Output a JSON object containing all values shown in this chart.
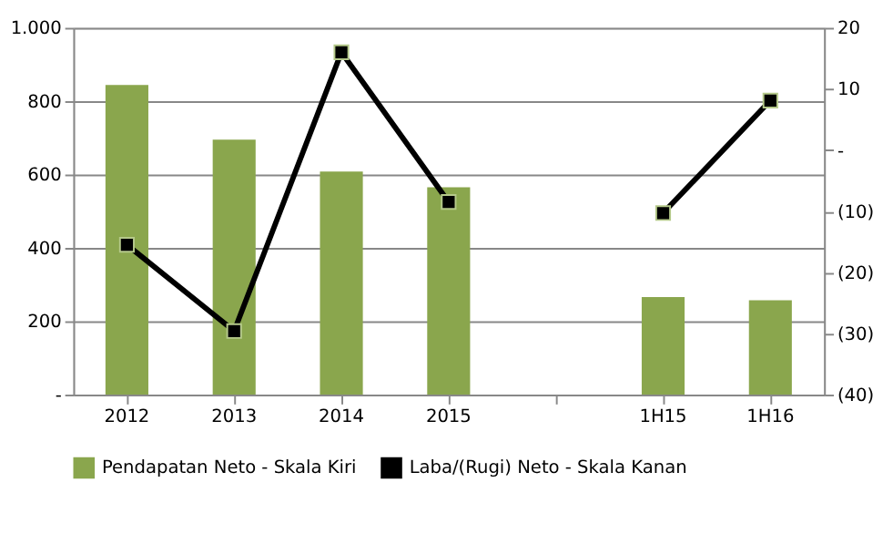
{
  "chart_data": {
    "type": "bar",
    "categories": [
      "2012",
      "2013",
      "2014",
      "2015",
      null,
      "1H15",
      "1H16"
    ],
    "series": [
      {
        "name": "Pendapatan Neto - Skala Kiri",
        "color": "#8aa64d",
        "values": [
          844,
          695,
          608,
          565,
          null,
          266,
          257
        ]
      },
      {
        "name": "Laba/(Rugi) Neto - Skala Kanan",
        "type": "line",
        "axis": "y2",
        "color": "#000000",
        "marker": "square",
        "values": [
          -15.5,
          -29.6,
          16,
          -8.5,
          null,
          -10.3,
          8.1
        ]
      }
    ],
    "ylim": [
      0,
      1000
    ],
    "yticks": [
      {
        "value": 0,
        "label": "-"
      },
      200,
      400,
      600,
      800,
      {
        "value": 1000,
        "label": "1.000"
      }
    ],
    "y2lim": [
      -40,
      20
    ],
    "y2ticks": [
      {
        "value": -40,
        "label": "(40)"
      },
      {
        "value": -30,
        "label": "(30)"
      },
      {
        "value": -20,
        "label": "(20)"
      },
      {
        "value": -10,
        "label": "(10)"
      },
      {
        "value": 0,
        "label": "-"
      },
      10,
      20
    ],
    "grid": "y",
    "legend": "bottom"
  }
}
